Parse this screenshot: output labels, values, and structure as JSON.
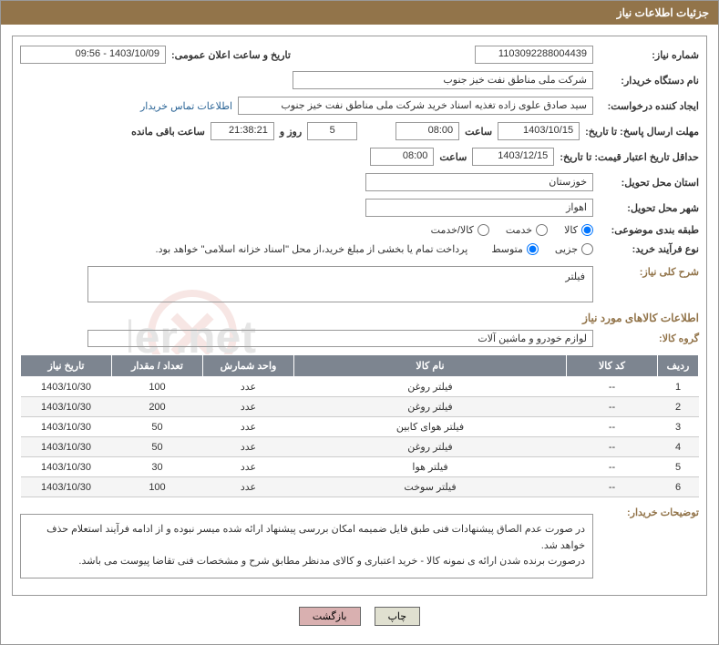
{
  "header": {
    "title": "جزئیات اطلاعات نیاز"
  },
  "labels": {
    "need_no": "شماره نیاز:",
    "announce_dt": "تاریخ و ساعت اعلان عمومی:",
    "buyer_org": "نام دستگاه خریدار:",
    "requester": "ایجاد کننده درخواست:",
    "contact": "اطلاعات تماس خریدار",
    "deadline": "مهلت ارسال پاسخ: تا تاریخ:",
    "time": "ساعت",
    "days_and": "روز و",
    "remaining": "ساعت باقی مانده",
    "min_valid": "حداقل تاریخ اعتبار قیمت: تا تاریخ:",
    "province": "استان محل تحویل:",
    "city": "شهر محل تحویل:",
    "category": "طبقه بندی موضوعی:",
    "process": "نوع فرآیند خرید:",
    "process_note": "پرداخت تمام یا بخشی از مبلغ خرید،از محل \"اسناد خزانه اسلامی\" خواهد بود.",
    "need_desc": "شرح کلی نیاز:",
    "items_title": "اطلاعات کالاهای مورد نیاز",
    "group": "گروه کالا:",
    "buyer_notes": "توضیحات خریدار:"
  },
  "values": {
    "need_no": "1103092288004439",
    "announce_dt": "1403/10/09 - 09:56",
    "buyer_org": "شرکت ملی مناطق نفت خیز جنوب",
    "requester": "سید صادق علوی زاده  تغذیه اسناد خرید  شرکت ملی مناطق نفت خیز جنوب",
    "deadline_date": "1403/10/15",
    "deadline_time": "08:00",
    "days_left": "5",
    "time_left": "21:38:21",
    "min_valid_date": "1403/12/15",
    "min_valid_time": "08:00",
    "province": "خوزستان",
    "city": "اهواز",
    "need_desc": "فیلتر",
    "group": "لوازم خودرو و ماشین آلات",
    "buyer_notes": "در صورت عدم الصاق پیشنهادات فنی طبق فایل ضمیمه امکان بررسی پیشنهاد ارائه شده میسر نبوده و از ادامه فرآیند استعلام حذف خواهد شد.\nدرصورت برنده شدن ارائه ی نمونه کالا - خرید اعتباری و کالای مدنظر مطابق شرح و مشخصات فنی تقاضا پیوست می باشد."
  },
  "radios": {
    "cat": {
      "opt1": "کالا",
      "opt2": "خدمت",
      "opt3": "کالا/خدمت",
      "selected": 0
    },
    "proc": {
      "opt1": "جزیی",
      "opt2": "متوسط",
      "selected": 1
    }
  },
  "table": {
    "headers": {
      "row": "ردیف",
      "code": "کد کالا",
      "name": "نام کالا",
      "unit": "واحد شمارش",
      "qty": "تعداد / مقدار",
      "date": "تاریخ نیاز"
    },
    "rows": [
      {
        "n": "1",
        "code": "--",
        "name": "فیلتر روغن",
        "unit": "عدد",
        "qty": "100",
        "date": "1403/10/30"
      },
      {
        "n": "2",
        "code": "--",
        "name": "فیلتر روغن",
        "unit": "عدد",
        "qty": "200",
        "date": "1403/10/30"
      },
      {
        "n": "3",
        "code": "--",
        "name": "فیلتر هوای کابین",
        "unit": "عدد",
        "qty": "50",
        "date": "1403/10/30"
      },
      {
        "n": "4",
        "code": "--",
        "name": "فیلتر روغن",
        "unit": "عدد",
        "qty": "50",
        "date": "1403/10/30"
      },
      {
        "n": "5",
        "code": "--",
        "name": "فیلتر هوا",
        "unit": "عدد",
        "qty": "30",
        "date": "1403/10/30"
      },
      {
        "n": "6",
        "code": "--",
        "name": "فیلتر سوخت",
        "unit": "عدد",
        "qty": "100",
        "date": "1403/10/30"
      }
    ]
  },
  "buttons": {
    "print": "چاپ",
    "back": "بازگشت"
  }
}
